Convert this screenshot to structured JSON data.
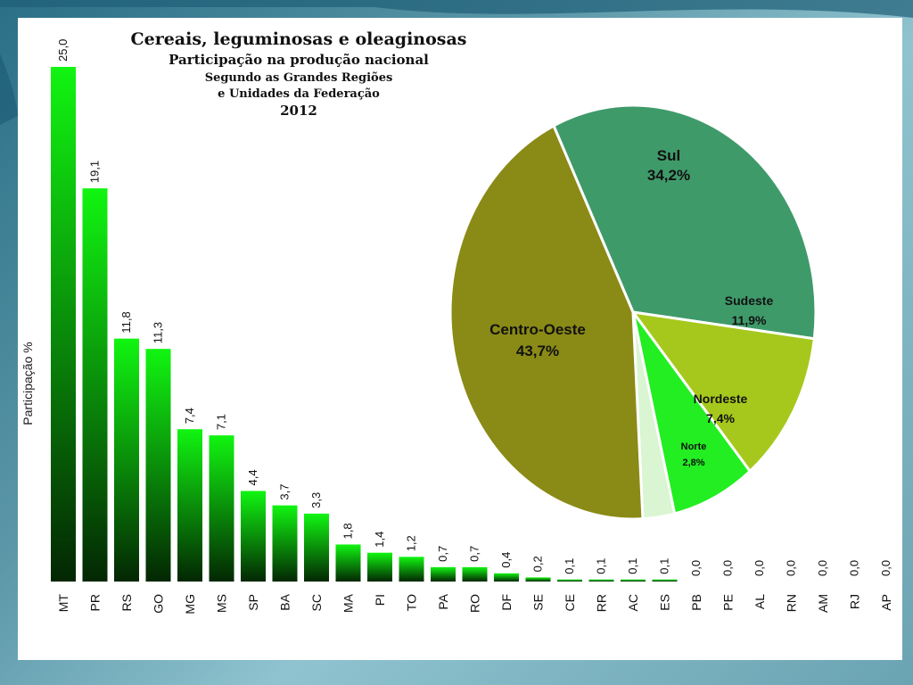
{
  "title": {
    "line1": "Cereais, leguminosas e oleaginosas",
    "line2": "Participação na produção nacional",
    "line3": "Segundo as Grandes Regiões",
    "line4": "e Unidades da Federação",
    "line5": "2012"
  },
  "colors": {
    "bar_top": "#11f511",
    "bar_bottom": "#032703",
    "centro_oeste": "#8a8a17",
    "sul": "#3f9a6a",
    "sudeste": "#a6c81c",
    "nordeste": "#22ee22",
    "norte": "#d9f5d2"
  },
  "chart_data": [
    {
      "type": "bar",
      "ylabel": "Participação %",
      "ylim": [
        0,
        25
      ],
      "categories": [
        "MT",
        "PR",
        "RS",
        "GO",
        "MG",
        "MS",
        "SP",
        "BA",
        "SC",
        "MA",
        "PI",
        "TO",
        "PA",
        "RO",
        "DF",
        "SE",
        "CE",
        "RR",
        "AC",
        "ES",
        "PB",
        "PE",
        "AL",
        "RN",
        "AM",
        "RJ",
        "AP"
      ],
      "values": [
        25.0,
        19.1,
        11.8,
        11.3,
        7.4,
        7.1,
        4.4,
        3.7,
        3.3,
        1.8,
        1.4,
        1.2,
        0.7,
        0.7,
        0.4,
        0.2,
        0.1,
        0.1,
        0.1,
        0.1,
        0.0,
        0.0,
        0.0,
        0.0,
        0.0,
        0.0,
        0.0
      ],
      "value_labels": [
        "25,0",
        "19,1",
        "11,8",
        "11,3",
        "7,4",
        "7,1",
        "4,4",
        "3,7",
        "3,3",
        "1,8",
        "1,4",
        "1,2",
        "0,7",
        "0,7",
        "0,4",
        "0,2",
        "0,1",
        "0,1",
        "0,1",
        "0,1",
        "0,0",
        "0,0",
        "0,0",
        "0,0",
        "0,0",
        "0,0",
        "0,0"
      ]
    },
    {
      "type": "pie",
      "slices": [
        {
          "name": "Sul",
          "value": 34.2,
          "label": "34,2%"
        },
        {
          "name": "Sudeste",
          "value": 11.9,
          "label": "11,9%"
        },
        {
          "name": "Nordeste",
          "value": 7.4,
          "label": "7,4%"
        },
        {
          "name": "Norte",
          "value": 2.8,
          "label": "2,8%"
        },
        {
          "name": "Centro-Oeste",
          "value": 43.7,
          "label": "43,7%"
        }
      ]
    }
  ]
}
